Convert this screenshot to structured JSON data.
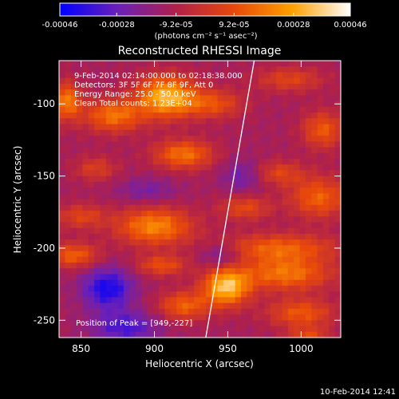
{
  "chart_data": {
    "type": "heatmap",
    "title": "Reconstructed RHESSI Image",
    "xlabel": "Heliocentric X (arcsec)",
    "ylabel": "Heliocentric Y (arcsec)",
    "xlim": [
      835,
      1027
    ],
    "ylim": [
      -262,
      -70
    ],
    "x_ticks": [
      850,
      900,
      950,
      1000
    ],
    "y_ticks": [
      -100,
      -150,
      -200,
      -250
    ],
    "colorbar": {
      "range": [
        -0.00046,
        0.00046
      ],
      "tick_values": [
        -0.00046,
        -0.00028,
        -9.2e-05,
        9.2e-05,
        0.00028,
        0.00046
      ],
      "tick_labels": [
        "-0.00046",
        "-0.00028",
        "-9.2e-05",
        "9.2e-05",
        "0.00028",
        "0.00046"
      ],
      "units": "(photons cm⁻² s⁻¹ asec⁻²)",
      "colors": [
        "#0000ff",
        "#6a20b8",
        "#b0204a",
        "#e8480a",
        "#ffa000",
        "#ffffff"
      ]
    },
    "annotations": [
      "9-Feb-2014 02:14:00.000 to 02:18:38.000",
      "Detectors: 3F 5F 6F 7F 8F 9F, Att 0",
      "Energy Range: 25.0 - 50.0 keV",
      "Clean      Total counts: 1.23E+04"
    ],
    "peak_label": "Position of Peak = [949,-227]",
    "peak": [
      949,
      -227
    ],
    "limb_line": [
      [
        935,
        -262
      ],
      [
        968,
        -70
      ]
    ],
    "sources": [
      {
        "x": 840,
        "y": -98,
        "sx": 7,
        "sy": 9,
        "v": 0.00032
      },
      {
        "x": 872,
        "y": -108,
        "sx": 14,
        "sy": 8,
        "v": 0.0003
      },
      {
        "x": 908,
        "y": -95,
        "sx": 14,
        "sy": 10,
        "v": 0.00044
      },
      {
        "x": 940,
        "y": -100,
        "sx": 14,
        "sy": 7,
        "v": 0.00022
      },
      {
        "x": 992,
        "y": -83,
        "sx": 16,
        "sy": 6,
        "v": 0.00018
      },
      {
        "x": 1015,
        "y": -118,
        "sx": 10,
        "sy": 9,
        "v": 0.00024
      },
      {
        "x": 920,
        "y": -135,
        "sx": 14,
        "sy": 7,
        "v": 0.0003
      },
      {
        "x": 860,
        "y": -145,
        "sx": 10,
        "sy": 6,
        "v": 0.00016
      },
      {
        "x": 985,
        "y": -148,
        "sx": 12,
        "sy": 6,
        "v": 0.00018
      },
      {
        "x": 1012,
        "y": -165,
        "sx": 14,
        "sy": 10,
        "v": 0.00026
      },
      {
        "x": 962,
        "y": -172,
        "sx": 12,
        "sy": 6,
        "v": 0.0002
      },
      {
        "x": 900,
        "y": -185,
        "sx": 18,
        "sy": 9,
        "v": 0.00034
      },
      {
        "x": 850,
        "y": -178,
        "sx": 12,
        "sy": 6,
        "v": 0.00018
      },
      {
        "x": 845,
        "y": -205,
        "sx": 12,
        "sy": 6,
        "v": 0.00026
      },
      {
        "x": 905,
        "y": -212,
        "sx": 12,
        "sy": 5,
        "v": 0.00022
      },
      {
        "x": 985,
        "y": -200,
        "sx": 28,
        "sy": 7,
        "v": 0.00026
      },
      {
        "x": 949,
        "y": -227,
        "sx": 11,
        "sy": 9,
        "v": 0.00046
      },
      {
        "x": 990,
        "y": -218,
        "sx": 22,
        "sy": 8,
        "v": 0.0003
      },
      {
        "x": 920,
        "y": -240,
        "sx": 12,
        "sy": 7,
        "v": 0.00026
      },
      {
        "x": 1000,
        "y": -245,
        "sx": 16,
        "sy": 7,
        "v": 0.00024
      },
      {
        "x": 1005,
        "y": -262,
        "sx": 10,
        "sy": 5,
        "v": 0.0002
      },
      {
        "x": 868,
        "y": -228,
        "sx": 12,
        "sy": 10,
        "v": -0.0003
      },
      {
        "x": 880,
        "y": -255,
        "sx": 16,
        "sy": 8,
        "v": -0.00022
      },
      {
        "x": 945,
        "y": -205,
        "sx": 10,
        "sy": 6,
        "v": -0.00016
      },
      {
        "x": 960,
        "y": -150,
        "sx": 10,
        "sy": 8,
        "v": -0.00014
      },
      {
        "x": 895,
        "y": -160,
        "sx": 14,
        "sy": 6,
        "v": -0.00012
      }
    ],
    "grid": false,
    "legend": "none"
  },
  "footer": {
    "date": "10-Feb-2014 12:41"
  }
}
